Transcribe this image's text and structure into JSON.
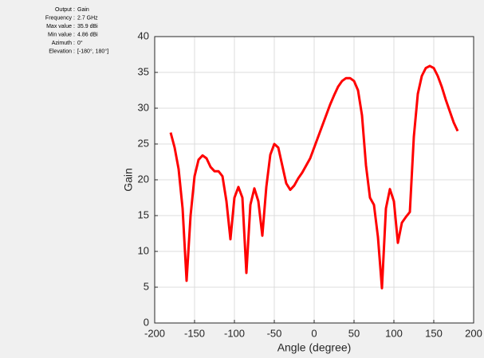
{
  "info": [
    {
      "label": "Output",
      "value": "Gain"
    },
    {
      "label": "Frequency",
      "value": "2.7 GHz"
    },
    {
      "label": "Max value",
      "value": "35.9 dBi"
    },
    {
      "label": "Min value",
      "value": "4.86 dBi"
    },
    {
      "label": "Azimuth",
      "value": "0°"
    },
    {
      "label": "Elevation",
      "value": "[-180°, 180°]"
    }
  ],
  "chart_data": {
    "type": "line",
    "x_label": "Angle (degree)",
    "y_label": "Gain",
    "xlim": [
      -200,
      200
    ],
    "xticks": [
      -200,
      -150,
      -100,
      -50,
      0,
      50,
      100,
      150,
      200
    ],
    "ylim": [
      0,
      40
    ],
    "yticks": [
      0,
      5,
      10,
      15,
      20,
      25,
      30,
      35,
      40
    ],
    "grid": true,
    "x": [
      -180,
      -175,
      -170,
      -165,
      -160,
      -155,
      -150,
      -145,
      -140,
      -135,
      -130,
      -125,
      -120,
      -115,
      -110,
      -105,
      -100,
      -95,
      -90,
      -85,
      -80,
      -75,
      -70,
      -65,
      -60,
      -55,
      -50,
      -45,
      -40,
      -35,
      -30,
      -25,
      -20,
      -15,
      -10,
      -5,
      0,
      5,
      10,
      15,
      20,
      25,
      30,
      35,
      40,
      45,
      50,
      55,
      60,
      65,
      70,
      75,
      80,
      85,
      90,
      95,
      100,
      105,
      110,
      115,
      120,
      125,
      130,
      135,
      140,
      145,
      150,
      155,
      160,
      165,
      170,
      175,
      180
    ],
    "series": [
      {
        "name": "Gain",
        "color": "#ff0000",
        "values": [
          26.6,
          24.5,
          21.5,
          16,
          5.9,
          15,
          20.5,
          22.8,
          23.4,
          23,
          21.8,
          21.2,
          21.2,
          20.5,
          17,
          11.7,
          17.5,
          19,
          17.5,
          7,
          16.5,
          18.8,
          17,
          12.2,
          19,
          23.5,
          25,
          24.5,
          22,
          19.5,
          18.6,
          19.2,
          20.2,
          21,
          22,
          23,
          24.5,
          26,
          27.5,
          29,
          30.5,
          31.8,
          33,
          33.8,
          34.2,
          34.2,
          33.8,
          32.5,
          29,
          22,
          17.5,
          16.5,
          12,
          4.86,
          16,
          18.7,
          17,
          11.2,
          14,
          14.8,
          15.5,
          26,
          32,
          34.5,
          35.6,
          35.9,
          35.6,
          34.5,
          33,
          31.2,
          29.6,
          28,
          26.8
        ]
      }
    ]
  }
}
